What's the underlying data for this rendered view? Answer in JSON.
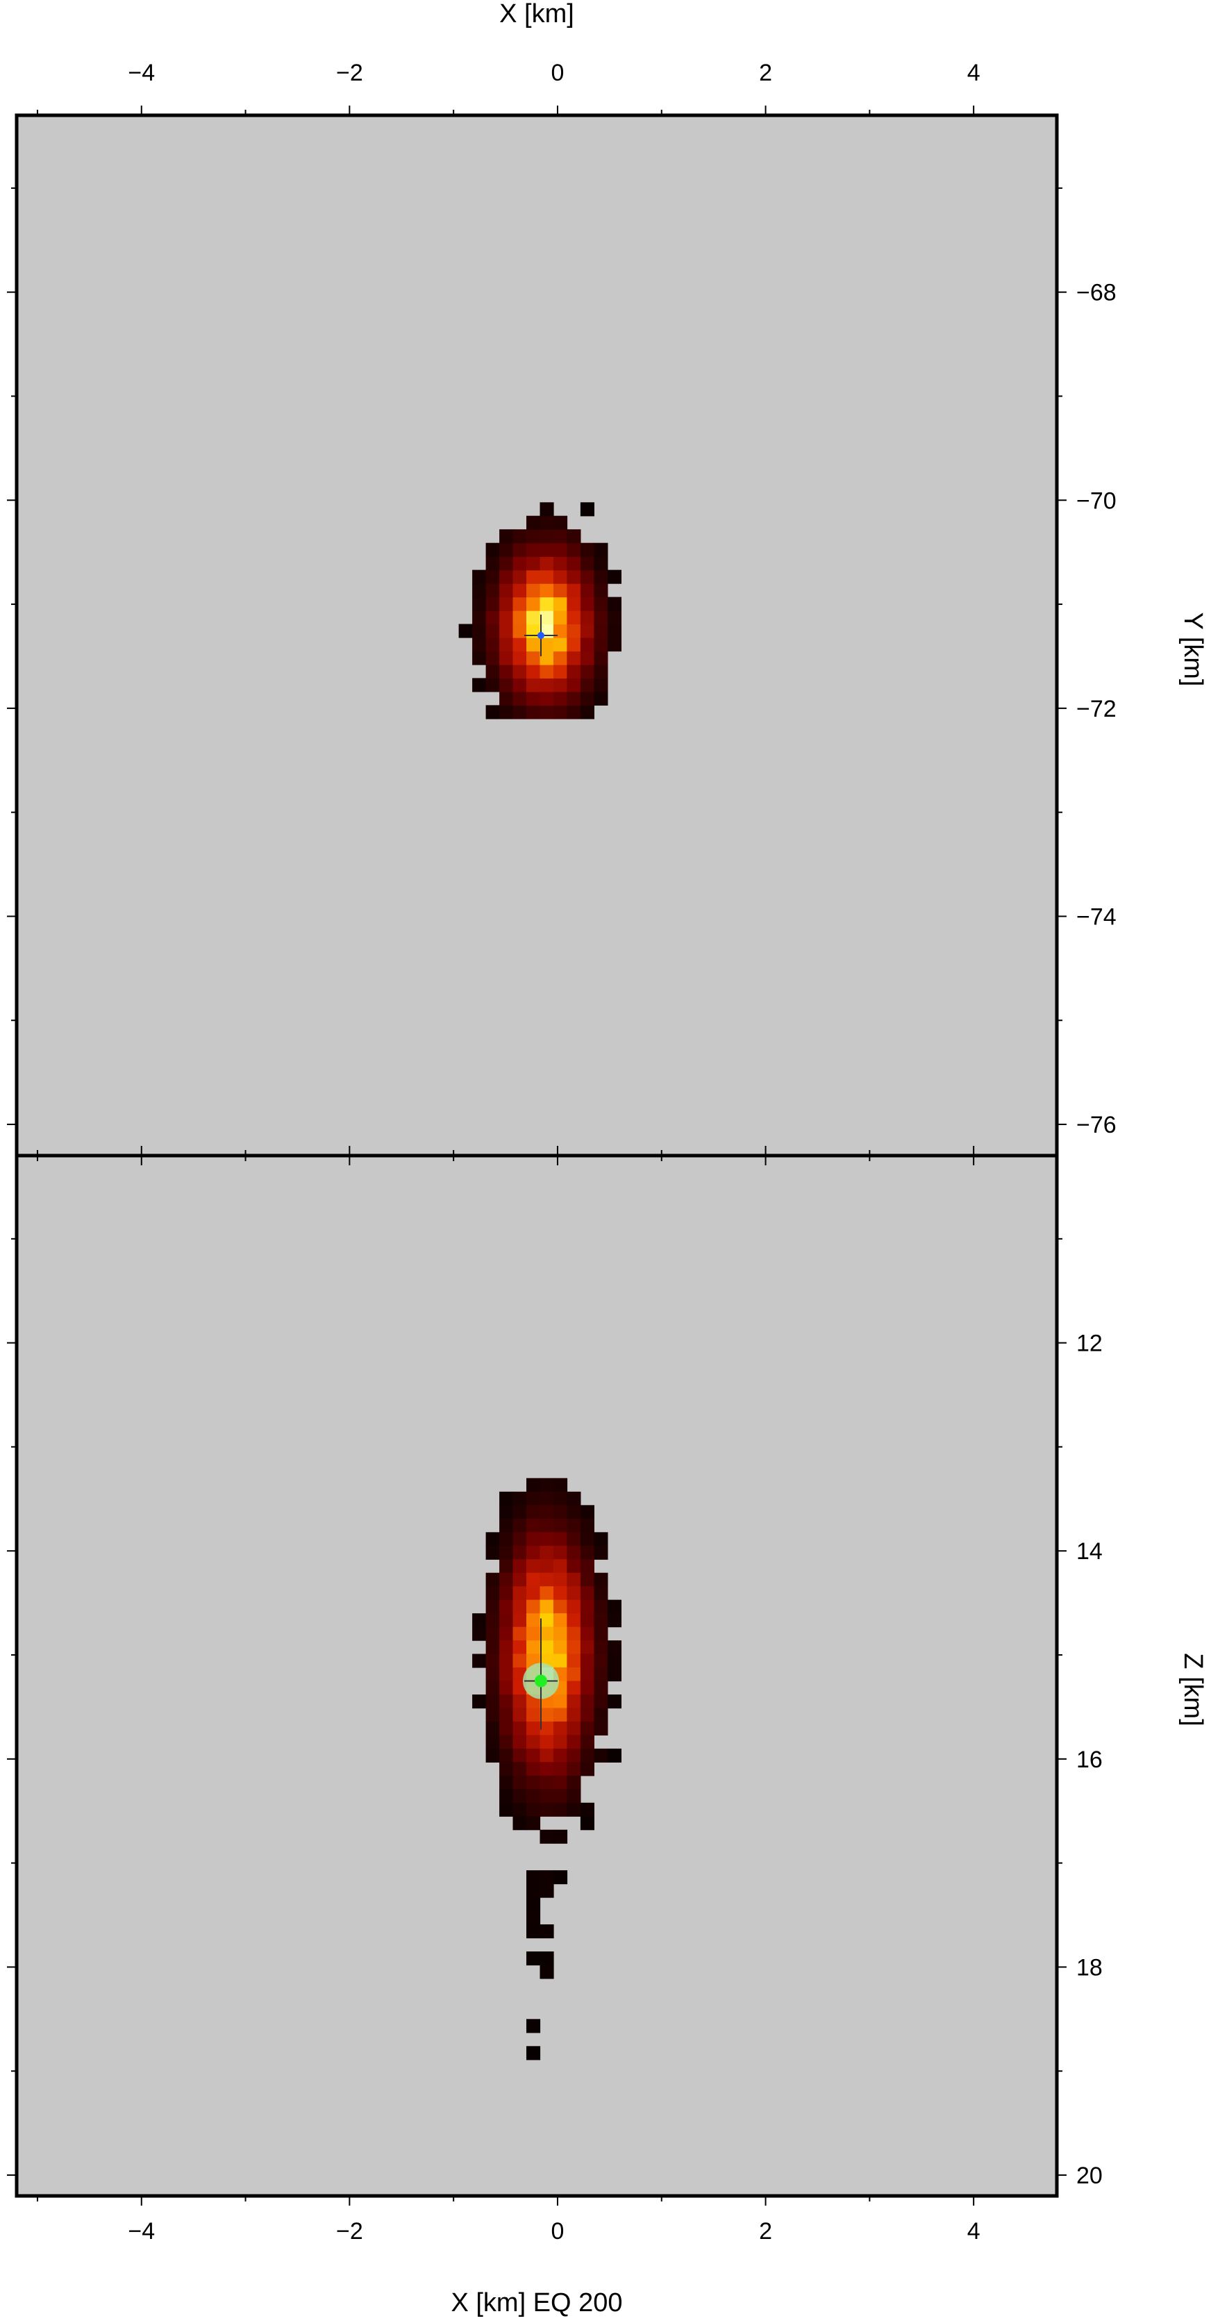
{
  "chart_data": [
    {
      "type": "heatmap",
      "panel": "map-view",
      "top_axis_label": "X [km]",
      "right_axis_label": "Y [km]",
      "xlim": [
        -5.2,
        4.8
      ],
      "ylim": [
        -76.3,
        -66.3
      ],
      "x_tick_labels": [
        "−4",
        "−2",
        "0",
        "2",
        "4"
      ],
      "x_ticks": [
        -4,
        -2,
        0,
        2,
        4
      ],
      "y_tick_labels": [
        "−68",
        "−70",
        "−72",
        "−74",
        "−76"
      ],
      "y_ticks": [
        -68,
        -70,
        -72,
        -74,
        -76
      ],
      "background_color": "#c8c8c8",
      "hypocenter": {
        "x": -0.16,
        "y": -71.3,
        "color": "#1e5aff"
      },
      "density_center": {
        "x": -0.12,
        "y": -71.2
      },
      "density_spread": {
        "x": 0.35,
        "y": 0.55
      },
      "extent": {
        "x": [
          -0.95,
          0.55
        ],
        "y": [
          -72.1,
          -69.9
        ]
      }
    },
    {
      "type": "heatmap",
      "panel": "section-view",
      "bottom_axis_label": "X [km] EQ 200",
      "right_axis_label": "Z [km]",
      "xlim": [
        -5.2,
        4.8
      ],
      "ylim": [
        10.2,
        20.2
      ],
      "x_tick_labels": [
        "−4",
        "−2",
        "0",
        "2",
        "4"
      ],
      "x_ticks": [
        -4,
        -2,
        0,
        2,
        4
      ],
      "y_tick_labels": [
        "12",
        "14",
        "16",
        "18",
        "20"
      ],
      "y_ticks": [
        12,
        14,
        16,
        18,
        20
      ],
      "background_color": "#c8c8c8",
      "hypocenter": {
        "x": -0.16,
        "z": 15.25,
        "color": "#22ee22",
        "halo_color": "#a8e0a8"
      },
      "density_center": {
        "x": -0.1,
        "z": 15.0
      },
      "density_spread": {
        "x": 0.32,
        "z": 0.85
      },
      "extent": {
        "x": [
          -0.95,
          0.55
        ],
        "z": [
          13.3,
          20.2
        ]
      }
    }
  ]
}
